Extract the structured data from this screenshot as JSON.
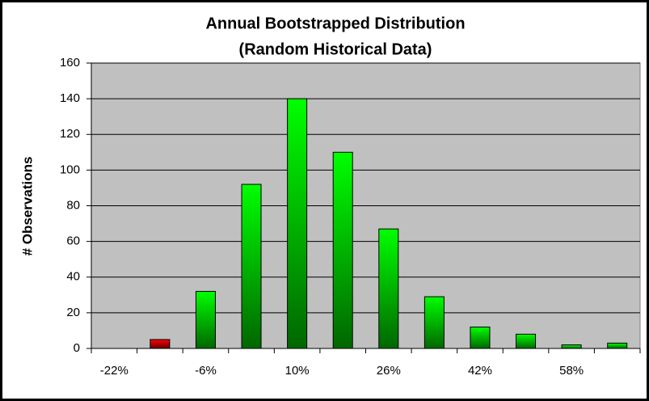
{
  "chart_data": {
    "type": "bar",
    "title": "Annual Bootstrapped Distribution",
    "subtitle": "(Random Historical Data)",
    "y_label": "# Observations",
    "categories": [
      "-22%",
      null,
      "-6%",
      null,
      "10%",
      null,
      "26%",
      null,
      "42%",
      null,
      "58%",
      null
    ],
    "values": [
      0,
      5,
      32,
      92,
      140,
      110,
      67,
      29,
      12,
      8,
      2,
      3
    ],
    "colors": [
      "#00ff00",
      "#ff0000",
      "#00ff00",
      "#00ff00",
      "#00ff00",
      "#00ff00",
      "#00ff00",
      "#00ff00",
      "#00ff00",
      "#00ff00",
      "#00ff00",
      "#00ff00"
    ],
    "plot_background": "#c0c0c0",
    "ylim": [
      0,
      160
    ],
    "yticks": [
      0,
      20,
      40,
      60,
      80,
      100,
      120,
      140,
      160
    ],
    "grid": true
  }
}
